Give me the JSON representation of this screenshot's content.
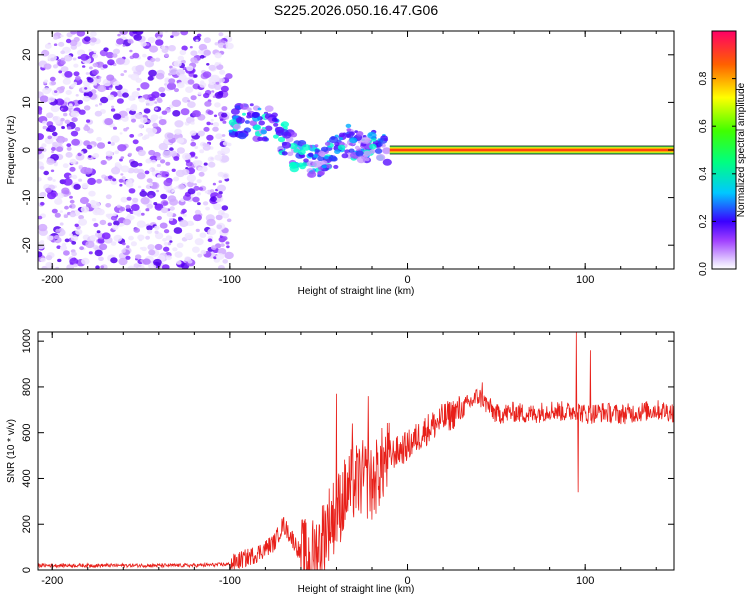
{
  "title": "S225.2026.050.16.47.G06",
  "colors": {
    "snr_line": "#e8201a",
    "heatmap_low": "#8a2be2",
    "heatmap_mid": "#00d4ff",
    "heatmap_high": "#ff0000",
    "axis": "#000000"
  },
  "chart_data": [
    {
      "type": "heatmap",
      "title": "S225.2026.050.16.47.G06",
      "xlabel": "Height of straight line (km)",
      "ylabel": "Frequency (Hz)",
      "xlim": [
        -208,
        150
      ],
      "ylim": [
        -25,
        25
      ],
      "xticks": [
        -200,
        -100,
        0,
        100
      ],
      "yticks": [
        -20,
        -10,
        0,
        10,
        20
      ],
      "colorbar": {
        "label": "Normalized spectral amplitude",
        "range": [
          0,
          1
        ],
        "ticks": [
          0.0,
          0.2,
          0.4,
          0.6,
          0.8
        ]
      },
      "regions": [
        {
          "name": "noise",
          "x_range": [
            -208,
            -100
          ],
          "freq_range": [
            -25,
            25
          ],
          "amplitude": 0.15
        },
        {
          "name": "transition",
          "x_range": [
            -100,
            -10
          ],
          "freq_center_start": 7,
          "freq_center_end": 0,
          "amplitude": 0.35
        },
        {
          "name": "carrier",
          "x_range": [
            -10,
            150
          ],
          "freq": 0,
          "amplitude": 0.95
        }
      ]
    },
    {
      "type": "line",
      "xlabel": "Height of straight line (km)",
      "ylabel": "SNR (10 * v/v)",
      "xlim": [
        -208,
        150
      ],
      "ylim": [
        0,
        1040
      ],
      "xticks": [
        -200,
        -100,
        0,
        100
      ],
      "yticks": [
        0,
        200,
        400,
        600,
        800,
        1000
      ],
      "series": [
        {
          "name": "SNR",
          "x": [
            -208,
            -180,
            -150,
            -120,
            -100,
            -85,
            -75,
            -70,
            -65,
            -60,
            -55,
            -50,
            -45,
            -40,
            -35,
            -30,
            -25,
            -20,
            -15,
            -10,
            -5,
            0,
            10,
            20,
            30,
            40,
            50,
            60,
            70,
            80,
            90,
            95,
            100,
            110,
            120,
            130,
            140,
            150
          ],
          "y": [
            20,
            20,
            20,
            20,
            25,
            70,
            120,
            200,
            140,
            70,
            40,
            100,
            200,
            250,
            330,
            380,
            400,
            370,
            450,
            500,
            520,
            540,
            610,
            660,
            700,
            760,
            680,
            690,
            680,
            700,
            690,
            700,
            680,
            690,
            680,
            690,
            700,
            690
          ]
        }
      ],
      "spikes": [
        {
          "x": -40,
          "y": 770
        },
        {
          "x": -31,
          "y": 640
        },
        {
          "x": -22,
          "y": 760
        },
        {
          "x": 42,
          "y": 820
        },
        {
          "x": 95,
          "y": 1040
        },
        {
          "x": 96,
          "y": 340
        },
        {
          "x": 103,
          "y": 960
        }
      ]
    }
  ]
}
